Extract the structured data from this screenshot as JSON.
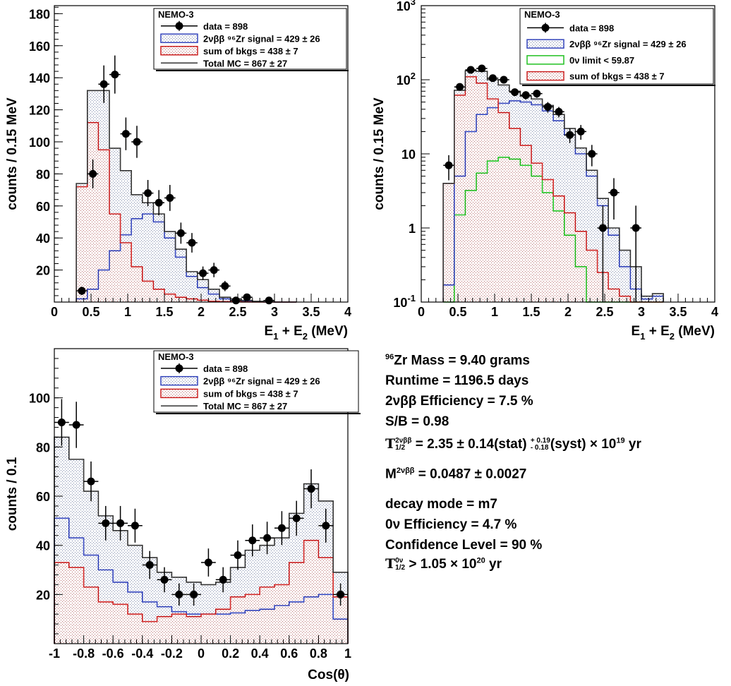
{
  "chart_data": [
    {
      "type": "histogram",
      "title": "",
      "xlabel": "E_1 + E_2 (MeV)",
      "ylabel": "counts / 0.15 MeV",
      "xlim": [
        0,
        4
      ],
      "ylim": [
        0,
        185
      ],
      "ylog": false,
      "x_ticks": [
        0,
        0.5,
        1,
        1.5,
        2,
        2.5,
        3,
        3.5,
        4
      ],
      "x_tick_labels": [
        "0",
        "0.5",
        "1",
        "1.5",
        "2",
        "2.5",
        "3",
        "3.5",
        "4"
      ],
      "y_ticks": [
        20,
        40,
        60,
        80,
        100,
        120,
        140,
        160,
        180
      ],
      "y_tick_labels": [
        "20",
        "40",
        "60",
        "80",
        "100",
        "120",
        "140",
        "160",
        "180"
      ],
      "bin_edges": [
        0.3,
        0.45,
        0.6,
        0.75,
        0.9,
        1.05,
        1.2,
        1.35,
        1.5,
        1.65,
        1.8,
        1.95,
        2.1,
        2.25,
        2.4,
        2.55,
        2.7,
        2.85,
        3.0,
        3.15,
        3.3
      ],
      "legend": {
        "title": "NEMO-3",
        "entries": [
          {
            "label": "data = 898",
            "style": "marker"
          },
          {
            "label": "2νββ ⁹⁶Zr signal = 429 ± 26",
            "style": "blue"
          },
          {
            "label": "sum of bkgs = 438 ± 7",
            "style": "red"
          },
          {
            "label": "Total MC = 867 ± 27",
            "style": "total"
          }
        ]
      },
      "series": [
        {
          "name": "Total MC",
          "values": [
            74,
            132,
            132,
            96,
            82,
            67,
            62,
            55,
            44,
            33,
            19,
            14,
            8,
            3,
            2,
            1,
            0.5,
            0.2,
            0,
            0
          ]
        },
        {
          "name": "2νββ ⁹⁶Zr signal",
          "values": [
            2,
            8,
            20,
            32,
            42,
            52,
            55,
            50,
            40,
            28,
            16,
            9,
            5,
            2,
            1,
            0.5,
            0.2,
            0.1,
            0,
            0
          ]
        },
        {
          "name": "sum of bkgs",
          "values": [
            72,
            112,
            95,
            55,
            37,
            22,
            13,
            8,
            5,
            3,
            2,
            1.2,
            0.5,
            0.3,
            0.2,
            0.1,
            0,
            0,
            0,
            0
          ]
        }
      ],
      "data_points": [
        {
          "x": 0.375,
          "y": 7,
          "err": 2.6
        },
        {
          "x": 0.525,
          "y": 80,
          "err": 9
        },
        {
          "x": 0.675,
          "y": 136,
          "err": 11.7
        },
        {
          "x": 0.825,
          "y": 142,
          "err": 11.9
        },
        {
          "x": 0.975,
          "y": 105,
          "err": 10.2
        },
        {
          "x": 1.125,
          "y": 100,
          "err": 10
        },
        {
          "x": 1.275,
          "y": 68,
          "err": 8.2
        },
        {
          "x": 1.425,
          "y": 62,
          "err": 7.9
        },
        {
          "x": 1.575,
          "y": 65,
          "err": 8.1
        },
        {
          "x": 1.725,
          "y": 43,
          "err": 6.6
        },
        {
          "x": 1.875,
          "y": 37,
          "err": 6.1
        },
        {
          "x": 2.025,
          "y": 18,
          "err": 4.2
        },
        {
          "x": 2.175,
          "y": 20,
          "err": 4.5
        },
        {
          "x": 2.325,
          "y": 10,
          "err": 3.2
        },
        {
          "x": 2.475,
          "y": 1,
          "err": 1
        },
        {
          "x": 2.625,
          "y": 3,
          "err": 1.7
        },
        {
          "x": 2.925,
          "y": 1,
          "err": 1
        }
      ]
    },
    {
      "type": "histogram",
      "title": "",
      "xlabel": "E_1 + E_2 (MeV)",
      "ylabel": "counts / 0.15 MeV",
      "xlim": [
        0,
        4
      ],
      "ylim": [
        0.1,
        1000
      ],
      "ylog": true,
      "x_ticks": [
        0,
        0.5,
        1,
        1.5,
        2,
        2.5,
        3,
        3.5,
        4
      ],
      "x_tick_labels": [
        "0",
        "0.5",
        "1",
        "1.5",
        "2",
        "2.5",
        "3",
        "3.5",
        "4"
      ],
      "y_ticks": [
        0.1,
        1,
        10,
        100,
        1000
      ],
      "y_tick_labels": [
        "10^-1",
        "1",
        "10",
        "10^2",
        "10^3"
      ],
      "bin_edges": [
        0.3,
        0.45,
        0.6,
        0.75,
        0.9,
        1.05,
        1.2,
        1.35,
        1.5,
        1.65,
        1.8,
        1.95,
        2.1,
        2.25,
        2.4,
        2.55,
        2.7,
        2.85,
        3.0,
        3.15,
        3.3
      ],
      "legend": {
        "title": "NEMO-3",
        "entries": [
          {
            "label": "data = 898",
            "style": "marker"
          },
          {
            "label": "2νββ ⁹⁶Zr signal = 429 ± 26",
            "style": "blue"
          },
          {
            "label": "0ν limit < 59.87",
            "style": "green"
          },
          {
            "label": "sum of bkgs = 438 ± 7",
            "style": "red"
          }
        ]
      },
      "series": [
        {
          "name": "Total MC",
          "values": [
            4,
            72,
            132,
            130,
            100,
            85,
            70,
            60,
            55,
            45,
            34,
            22,
            12,
            6,
            2.5,
            1,
            0.5,
            0.3,
            0.12,
            0.13
          ]
        },
        {
          "name": "2νββ ⁹⁶Zr signal",
          "values": [
            0.17,
            5,
            20,
            34,
            42,
            48,
            52,
            50,
            46,
            38,
            28,
            18,
            10,
            5,
            2,
            0.8,
            0.3,
            0.15,
            0.11,
            0.12
          ]
        },
        {
          "name": "0ν limit",
          "values": [
            0,
            1.5,
            3.2,
            5.5,
            8,
            9,
            8.5,
            7,
            5,
            3,
            1.7,
            0.8,
            0.3,
            0,
            0,
            0,
            0,
            0,
            0,
            0
          ]
        },
        {
          "name": "sum of bkgs",
          "values": [
            4,
            62,
            110,
            90,
            55,
            36,
            22,
            13,
            7.5,
            4.5,
            2.7,
            1.6,
            0.9,
            0.5,
            0.25,
            0.15,
            0.12,
            0.1,
            0,
            0
          ]
        }
      ],
      "data_points": [
        {
          "x": 0.375,
          "y": 7,
          "lo": 4.4,
          "hi": 9.6
        },
        {
          "x": 0.525,
          "y": 80,
          "lo": 71,
          "hi": 89
        },
        {
          "x": 0.675,
          "y": 136,
          "lo": 124,
          "hi": 148
        },
        {
          "x": 0.825,
          "y": 142,
          "lo": 130,
          "hi": 154
        },
        {
          "x": 0.975,
          "y": 105,
          "lo": 95,
          "hi": 115
        },
        {
          "x": 1.125,
          "y": 100,
          "lo": 90,
          "hi": 110
        },
        {
          "x": 1.275,
          "y": 68,
          "lo": 60,
          "hi": 76
        },
        {
          "x": 1.425,
          "y": 62,
          "lo": 54,
          "hi": 70
        },
        {
          "x": 1.575,
          "y": 65,
          "lo": 57,
          "hi": 73
        },
        {
          "x": 1.725,
          "y": 43,
          "lo": 36,
          "hi": 50
        },
        {
          "x": 1.875,
          "y": 37,
          "lo": 31,
          "hi": 43
        },
        {
          "x": 2.025,
          "y": 18,
          "lo": 14,
          "hi": 22
        },
        {
          "x": 2.175,
          "y": 20,
          "lo": 15.5,
          "hi": 24.5
        },
        {
          "x": 2.325,
          "y": 10,
          "lo": 6.8,
          "hi": 13.2
        },
        {
          "x": 2.475,
          "y": 1,
          "lo": 0.1,
          "hi": 2
        },
        {
          "x": 2.625,
          "y": 3,
          "lo": 1.3,
          "hi": 4.7
        },
        {
          "x": 2.925,
          "y": 1,
          "lo": 0.1,
          "hi": 2
        }
      ]
    },
    {
      "type": "histogram",
      "title": "",
      "xlabel": "Cos(θ)",
      "ylabel": "counts / 0.1",
      "xlim": [
        -1,
        1
      ],
      "ylim": [
        0,
        120
      ],
      "ylog": false,
      "x_ticks": [
        -1,
        -0.8,
        -0.6,
        -0.4,
        -0.2,
        0,
        0.2,
        0.4,
        0.6,
        0.8,
        1
      ],
      "x_tick_labels": [
        "-1",
        "-0.8",
        "-0.6",
        "-0.4",
        "-0.2",
        "0",
        "0.2",
        "0.4",
        "0.6",
        "0.8",
        "1"
      ],
      "y_ticks": [
        20,
        40,
        60,
        80,
        100
      ],
      "y_tick_labels": [
        "20",
        "40",
        "60",
        "80",
        "100"
      ],
      "bin_edges": [
        -1.0,
        -0.9,
        -0.8,
        -0.7,
        -0.6,
        -0.5,
        -0.4,
        -0.3,
        -0.2,
        -0.1,
        0.0,
        0.1,
        0.2,
        0.3,
        0.4,
        0.5,
        0.6,
        0.7,
        0.8,
        0.9,
        1.0
      ],
      "legend": {
        "title": "NEMO-3",
        "entries": [
          {
            "label": "data = 898",
            "style": "marker"
          },
          {
            "label": "2νββ ⁹⁶Zr signal = 429 ± 26",
            "style": "blue"
          },
          {
            "label": "sum of bkgs = 438 ± 7",
            "style": "red"
          },
          {
            "label": "Total MC = 867 ± 27",
            "style": "total"
          }
        ]
      },
      "series": [
        {
          "name": "Total MC",
          "values": [
            84,
            75,
            62,
            52,
            46,
            40,
            35,
            29,
            27,
            25,
            24,
            25,
            31,
            38,
            40,
            43,
            53,
            65,
            58,
            29
          ]
        },
        {
          "name": "2νββ ⁹⁶Zr signal",
          "values": [
            51,
            43,
            36,
            30,
            25,
            21,
            17,
            15,
            13,
            12,
            12,
            12,
            12.5,
            13.5,
            14,
            15.5,
            17,
            19,
            20,
            10
          ]
        },
        {
          "name": "sum of bkgs",
          "values": [
            33,
            31,
            23,
            17,
            16,
            12,
            9,
            11,
            12,
            11,
            12,
            14,
            19,
            20,
            23,
            24,
            33,
            42,
            35,
            19
          ]
        }
      ],
      "data_points": [
        {
          "x": -0.95,
          "y": 90,
          "err": 9.5
        },
        {
          "x": -0.85,
          "y": 89,
          "err": 9.4
        },
        {
          "x": -0.75,
          "y": 66,
          "err": 8.1
        },
        {
          "x": -0.65,
          "y": 49,
          "err": 7
        },
        {
          "x": -0.55,
          "y": 49,
          "err": 7
        },
        {
          "x": -0.45,
          "y": 48,
          "err": 6.9
        },
        {
          "x": -0.35,
          "y": 32,
          "err": 5.7
        },
        {
          "x": -0.25,
          "y": 26,
          "err": 5.1
        },
        {
          "x": -0.15,
          "y": 20,
          "err": 4.5
        },
        {
          "x": -0.05,
          "y": 20,
          "err": 4.5
        },
        {
          "x": 0.05,
          "y": 33,
          "err": 5.7
        },
        {
          "x": 0.15,
          "y": 26,
          "err": 5.1
        },
        {
          "x": 0.25,
          "y": 36,
          "err": 6
        },
        {
          "x": 0.35,
          "y": 42,
          "err": 6.5
        },
        {
          "x": 0.45,
          "y": 43,
          "err": 6.6
        },
        {
          "x": 0.55,
          "y": 47,
          "err": 6.9
        },
        {
          "x": 0.65,
          "y": 51,
          "err": 7.1
        },
        {
          "x": 0.75,
          "y": 63,
          "err": 7.9
        },
        {
          "x": 0.85,
          "y": 48,
          "err": 6.9
        },
        {
          "x": 0.95,
          "y": 20,
          "err": 4.5
        }
      ]
    }
  ],
  "info": {
    "mass_iso": "96",
    "mass_text": "Zr Mass = 9.40 grams",
    "runtime": "Runtime = 1196.5 days",
    "efficiency_2v": "2νββ Efficiency = 7.5 %",
    "s_over_b": "S/B = 0.98",
    "halflife_T": "T",
    "halflife_sup": "2νββ",
    "halflife_sub": "1/2",
    "halflife_value": " =  2.35  ±  0.14(stat) ",
    "halflife_syst_plus": "+ 0.19",
    "halflife_syst_minus": "- 0.18",
    "halflife_syst_text": "(syst) × 10",
    "halflife_exp": "19",
    "halflife_unit": " yr",
    "matrix_M": "M",
    "matrix_sup": "2νββ",
    "matrix_value": " = 0.0487 ± 0.0027",
    "decay_mode": "decay mode = m7",
    "efficiency_0v": "0ν Efficiency = 4.7 %",
    "confidence": "Confidence Level = 90 %",
    "limit_T": "T",
    "limit_sup": "0ν",
    "limit_sub": "1/2",
    "limit_value": "  >  1.05  × 10",
    "limit_exp": "20",
    "limit_unit": " yr"
  }
}
